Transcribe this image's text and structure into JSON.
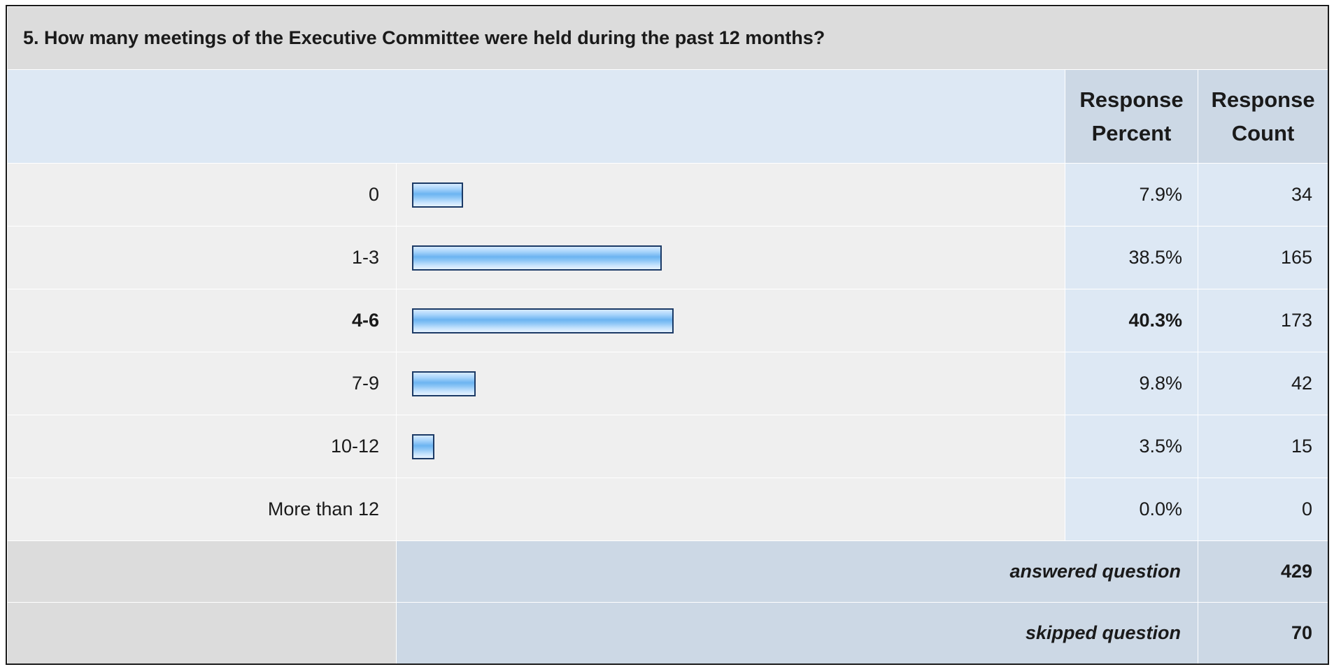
{
  "question": {
    "title": "5. How many meetings of the Executive Committee were held during the past 12 months?"
  },
  "headers": {
    "percent": "Response Percent",
    "count": "Response Count"
  },
  "chart_data": {
    "type": "bar",
    "orientation": "horizontal",
    "title": "5. How many meetings of the Executive Committee were held during the past 12 months?",
    "categories": [
      "0",
      "1-3",
      "4-6",
      "7-9",
      "10-12",
      "More than 12"
    ],
    "values": [
      7.9,
      38.5,
      40.3,
      9.8,
      3.5,
      0.0
    ],
    "xlim": [
      0,
      100
    ],
    "series": [
      {
        "values": [
          7.9,
          38.5,
          40.3,
          9.8,
          3.5,
          0.0
        ]
      }
    ],
    "rows": [
      {
        "label": "0",
        "percent_value": 7.9,
        "percent": "7.9%",
        "count": "34",
        "highlight": false
      },
      {
        "label": "1-3",
        "percent_value": 38.5,
        "percent": "38.5%",
        "count": "165",
        "highlight": false
      },
      {
        "label": "4-6",
        "percent_value": 40.3,
        "percent": "40.3%",
        "count": "173",
        "highlight": true
      },
      {
        "label": "7-9",
        "percent_value": 9.8,
        "percent": "9.8%",
        "count": "42",
        "highlight": false
      },
      {
        "label": "10-12",
        "percent_value": 3.5,
        "percent": "3.5%",
        "count": "15",
        "highlight": false
      },
      {
        "label": "More than 12",
        "percent_value": 0.0,
        "percent": "0.0%",
        "count": "0",
        "highlight": false
      }
    ]
  },
  "summary": {
    "answered_label": "answered question",
    "answered_value": "429",
    "skipped_label": "skipped question",
    "skipped_value": "70"
  },
  "colors": {
    "bar_border": "#1b3a66",
    "bar_fill": "#6cb4f1",
    "header_bg": "#dde8f4",
    "title_bg": "#dcdcdc"
  }
}
